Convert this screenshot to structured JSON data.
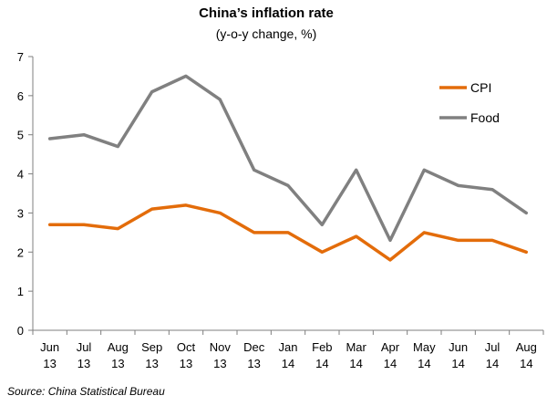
{
  "chart_data": {
    "type": "line",
    "title": "China’s inflation  rate",
    "subtitle": "(y-o-y change,  %)",
    "categories": [
      [
        "Jun",
        "13"
      ],
      [
        "Jul",
        "13"
      ],
      [
        "Aug",
        "13"
      ],
      [
        "Sep",
        "13"
      ],
      [
        "Oct",
        "13"
      ],
      [
        "Nov",
        "13"
      ],
      [
        "Dec",
        "13"
      ],
      [
        "Jan",
        "14"
      ],
      [
        "Feb",
        "14"
      ],
      [
        "Mar",
        "14"
      ],
      [
        "Apr",
        "14"
      ],
      [
        "May",
        "14"
      ],
      [
        "Jun",
        "14"
      ],
      [
        "Jul",
        "14"
      ],
      [
        "Aug",
        "14"
      ]
    ],
    "series": [
      {
        "name": "CPI",
        "color": "#e36c0a",
        "values": [
          2.7,
          2.7,
          2.6,
          3.1,
          3.2,
          3.0,
          2.5,
          2.5,
          2.0,
          2.4,
          1.8,
          2.5,
          2.3,
          2.3,
          2.0
        ]
      },
      {
        "name": "Food",
        "color": "#808080",
        "values": [
          4.9,
          5.0,
          4.7,
          6.1,
          6.5,
          5.9,
          4.1,
          3.7,
          2.7,
          4.1,
          2.3,
          4.1,
          3.7,
          3.6,
          3.0
        ]
      }
    ],
    "ylim": [
      0,
      7
    ],
    "yticks": [
      "0",
      "1",
      "2",
      "3",
      "4",
      "5",
      "6",
      "7"
    ],
    "grid": false,
    "legend": "top-right"
  },
  "source": "Source: China Statistical Bureau"
}
